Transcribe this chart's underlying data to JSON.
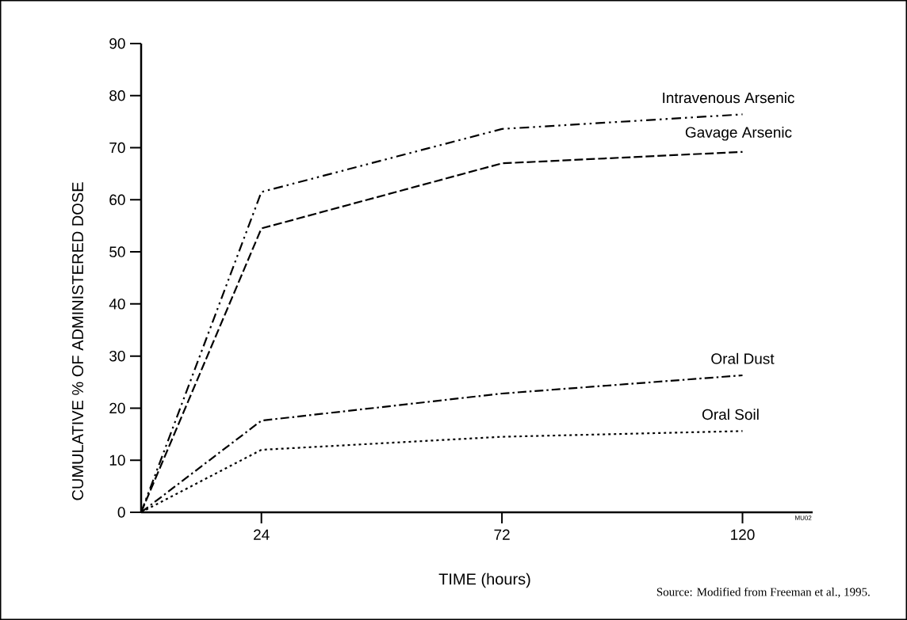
{
  "chart_data": {
    "type": "line",
    "xlabel": "TIME (hours)",
    "ylabel": "CUMULATIVE % OF ADMINISTERED DOSE",
    "xlim": [
      0,
      134
    ],
    "xticks": [
      24,
      72,
      120
    ],
    "ylim": [
      0,
      90
    ],
    "yticks": [
      0,
      10,
      20,
      30,
      40,
      50,
      60,
      70,
      80,
      90
    ],
    "x": [
      0,
      24,
      72,
      120
    ],
    "grid": false,
    "series": [
      {
        "name": "Intravenous  Arsenic",
        "color": "#000000",
        "line_style": "dashdotdotted",
        "values": [
          0,
          61.5,
          73.6,
          76.4
        ]
      },
      {
        "name": "Gavage Arsenic",
        "color": "#000000",
        "line_style": "dashed",
        "values": [
          0,
          54.5,
          67,
          69.2
        ]
      },
      {
        "name": "Oral Dust",
        "color": "#000000",
        "line_style": "dashdotted",
        "values": [
          0,
          17.6,
          22.8,
          26.3
        ]
      },
      {
        "name": "Oral Soil",
        "color": "#000000",
        "line_style": "dotted",
        "values": [
          0,
          12,
          14.5,
          15.6
        ]
      }
    ],
    "annotations": [
      "MU02",
      "Source: Modified from Freeman et al., 1995."
    ]
  }
}
